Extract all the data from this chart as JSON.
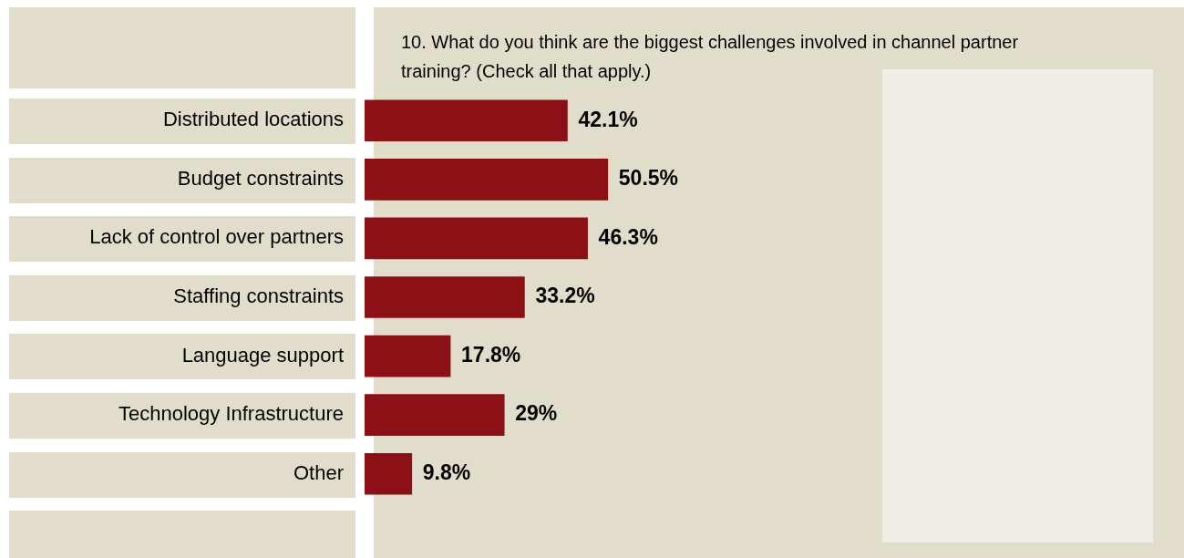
{
  "chart_data": {
    "type": "bar",
    "orientation": "horizontal",
    "title": "10. What do you think are the biggest challenges involved in channel partner training? (Check all that apply.)",
    "categories": [
      "Distributed locations",
      "Budget constraints",
      "Lack of control over partners",
      "Staffing constraints",
      "Language support",
      "Technology Infrastructure",
      "Other"
    ],
    "values": [
      42.1,
      50.5,
      46.3,
      33.2,
      17.8,
      29,
      9.8
    ],
    "value_labels": [
      "42.1%",
      "50.5%",
      "46.3%",
      "33.2%",
      "17.8%",
      "29%",
      "9.8%"
    ],
    "color": "#8b1116",
    "tick_labels": "y",
    "legend": false
  }
}
